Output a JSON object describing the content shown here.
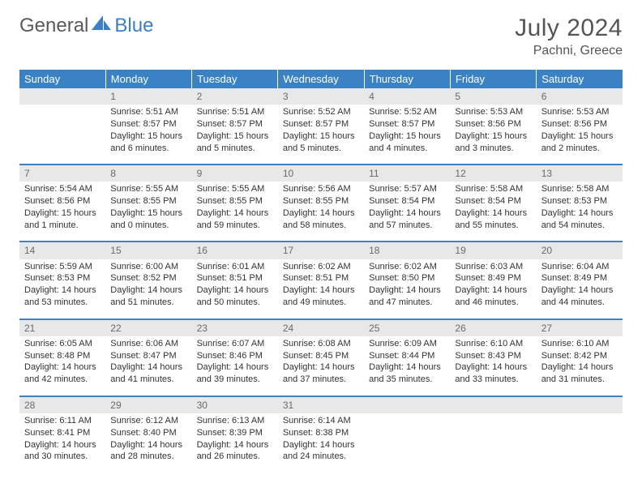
{
  "brand": {
    "part1": "General",
    "part2": "Blue"
  },
  "title": "July 2024",
  "location": "Pachni, Greece",
  "colors": {
    "header_bg": "#3b82c4",
    "header_text": "#ffffff",
    "daynum_bg": "#e8e8e8",
    "daynum_text": "#6a6a6a",
    "body_text": "#333333",
    "row_divider": "#3b82c4",
    "logo_gray": "#5a5a5a",
    "logo_blue": "#3b7fc4"
  },
  "weekdays": [
    "Sunday",
    "Monday",
    "Tuesday",
    "Wednesday",
    "Thursday",
    "Friday",
    "Saturday"
  ],
  "weeks": [
    [
      {
        "num": "",
        "sunrise": "",
        "sunset": "",
        "daylight1": "",
        "daylight2": ""
      },
      {
        "num": "1",
        "sunrise": "Sunrise: 5:51 AM",
        "sunset": "Sunset: 8:57 PM",
        "daylight1": "Daylight: 15 hours",
        "daylight2": "and 6 minutes."
      },
      {
        "num": "2",
        "sunrise": "Sunrise: 5:51 AM",
        "sunset": "Sunset: 8:57 PM",
        "daylight1": "Daylight: 15 hours",
        "daylight2": "and 5 minutes."
      },
      {
        "num": "3",
        "sunrise": "Sunrise: 5:52 AM",
        "sunset": "Sunset: 8:57 PM",
        "daylight1": "Daylight: 15 hours",
        "daylight2": "and 5 minutes."
      },
      {
        "num": "4",
        "sunrise": "Sunrise: 5:52 AM",
        "sunset": "Sunset: 8:57 PM",
        "daylight1": "Daylight: 15 hours",
        "daylight2": "and 4 minutes."
      },
      {
        "num": "5",
        "sunrise": "Sunrise: 5:53 AM",
        "sunset": "Sunset: 8:56 PM",
        "daylight1": "Daylight: 15 hours",
        "daylight2": "and 3 minutes."
      },
      {
        "num": "6",
        "sunrise": "Sunrise: 5:53 AM",
        "sunset": "Sunset: 8:56 PM",
        "daylight1": "Daylight: 15 hours",
        "daylight2": "and 2 minutes."
      }
    ],
    [
      {
        "num": "7",
        "sunrise": "Sunrise: 5:54 AM",
        "sunset": "Sunset: 8:56 PM",
        "daylight1": "Daylight: 15 hours",
        "daylight2": "and 1 minute."
      },
      {
        "num": "8",
        "sunrise": "Sunrise: 5:55 AM",
        "sunset": "Sunset: 8:55 PM",
        "daylight1": "Daylight: 15 hours",
        "daylight2": "and 0 minutes."
      },
      {
        "num": "9",
        "sunrise": "Sunrise: 5:55 AM",
        "sunset": "Sunset: 8:55 PM",
        "daylight1": "Daylight: 14 hours",
        "daylight2": "and 59 minutes."
      },
      {
        "num": "10",
        "sunrise": "Sunrise: 5:56 AM",
        "sunset": "Sunset: 8:55 PM",
        "daylight1": "Daylight: 14 hours",
        "daylight2": "and 58 minutes."
      },
      {
        "num": "11",
        "sunrise": "Sunrise: 5:57 AM",
        "sunset": "Sunset: 8:54 PM",
        "daylight1": "Daylight: 14 hours",
        "daylight2": "and 57 minutes."
      },
      {
        "num": "12",
        "sunrise": "Sunrise: 5:58 AM",
        "sunset": "Sunset: 8:54 PM",
        "daylight1": "Daylight: 14 hours",
        "daylight2": "and 55 minutes."
      },
      {
        "num": "13",
        "sunrise": "Sunrise: 5:58 AM",
        "sunset": "Sunset: 8:53 PM",
        "daylight1": "Daylight: 14 hours",
        "daylight2": "and 54 minutes."
      }
    ],
    [
      {
        "num": "14",
        "sunrise": "Sunrise: 5:59 AM",
        "sunset": "Sunset: 8:53 PM",
        "daylight1": "Daylight: 14 hours",
        "daylight2": "and 53 minutes."
      },
      {
        "num": "15",
        "sunrise": "Sunrise: 6:00 AM",
        "sunset": "Sunset: 8:52 PM",
        "daylight1": "Daylight: 14 hours",
        "daylight2": "and 51 minutes."
      },
      {
        "num": "16",
        "sunrise": "Sunrise: 6:01 AM",
        "sunset": "Sunset: 8:51 PM",
        "daylight1": "Daylight: 14 hours",
        "daylight2": "and 50 minutes."
      },
      {
        "num": "17",
        "sunrise": "Sunrise: 6:02 AM",
        "sunset": "Sunset: 8:51 PM",
        "daylight1": "Daylight: 14 hours",
        "daylight2": "and 49 minutes."
      },
      {
        "num": "18",
        "sunrise": "Sunrise: 6:02 AM",
        "sunset": "Sunset: 8:50 PM",
        "daylight1": "Daylight: 14 hours",
        "daylight2": "and 47 minutes."
      },
      {
        "num": "19",
        "sunrise": "Sunrise: 6:03 AM",
        "sunset": "Sunset: 8:49 PM",
        "daylight1": "Daylight: 14 hours",
        "daylight2": "and 46 minutes."
      },
      {
        "num": "20",
        "sunrise": "Sunrise: 6:04 AM",
        "sunset": "Sunset: 8:49 PM",
        "daylight1": "Daylight: 14 hours",
        "daylight2": "and 44 minutes."
      }
    ],
    [
      {
        "num": "21",
        "sunrise": "Sunrise: 6:05 AM",
        "sunset": "Sunset: 8:48 PM",
        "daylight1": "Daylight: 14 hours",
        "daylight2": "and 42 minutes."
      },
      {
        "num": "22",
        "sunrise": "Sunrise: 6:06 AM",
        "sunset": "Sunset: 8:47 PM",
        "daylight1": "Daylight: 14 hours",
        "daylight2": "and 41 minutes."
      },
      {
        "num": "23",
        "sunrise": "Sunrise: 6:07 AM",
        "sunset": "Sunset: 8:46 PM",
        "daylight1": "Daylight: 14 hours",
        "daylight2": "and 39 minutes."
      },
      {
        "num": "24",
        "sunrise": "Sunrise: 6:08 AM",
        "sunset": "Sunset: 8:45 PM",
        "daylight1": "Daylight: 14 hours",
        "daylight2": "and 37 minutes."
      },
      {
        "num": "25",
        "sunrise": "Sunrise: 6:09 AM",
        "sunset": "Sunset: 8:44 PM",
        "daylight1": "Daylight: 14 hours",
        "daylight2": "and 35 minutes."
      },
      {
        "num": "26",
        "sunrise": "Sunrise: 6:10 AM",
        "sunset": "Sunset: 8:43 PM",
        "daylight1": "Daylight: 14 hours",
        "daylight2": "and 33 minutes."
      },
      {
        "num": "27",
        "sunrise": "Sunrise: 6:10 AM",
        "sunset": "Sunset: 8:42 PM",
        "daylight1": "Daylight: 14 hours",
        "daylight2": "and 31 minutes."
      }
    ],
    [
      {
        "num": "28",
        "sunrise": "Sunrise: 6:11 AM",
        "sunset": "Sunset: 8:41 PM",
        "daylight1": "Daylight: 14 hours",
        "daylight2": "and 30 minutes."
      },
      {
        "num": "29",
        "sunrise": "Sunrise: 6:12 AM",
        "sunset": "Sunset: 8:40 PM",
        "daylight1": "Daylight: 14 hours",
        "daylight2": "and 28 minutes."
      },
      {
        "num": "30",
        "sunrise": "Sunrise: 6:13 AM",
        "sunset": "Sunset: 8:39 PM",
        "daylight1": "Daylight: 14 hours",
        "daylight2": "and 26 minutes."
      },
      {
        "num": "31",
        "sunrise": "Sunrise: 6:14 AM",
        "sunset": "Sunset: 8:38 PM",
        "daylight1": "Daylight: 14 hours",
        "daylight2": "and 24 minutes."
      },
      {
        "num": "",
        "sunrise": "",
        "sunset": "",
        "daylight1": "",
        "daylight2": ""
      },
      {
        "num": "",
        "sunrise": "",
        "sunset": "",
        "daylight1": "",
        "daylight2": ""
      },
      {
        "num": "",
        "sunrise": "",
        "sunset": "",
        "daylight1": "",
        "daylight2": ""
      }
    ]
  ]
}
